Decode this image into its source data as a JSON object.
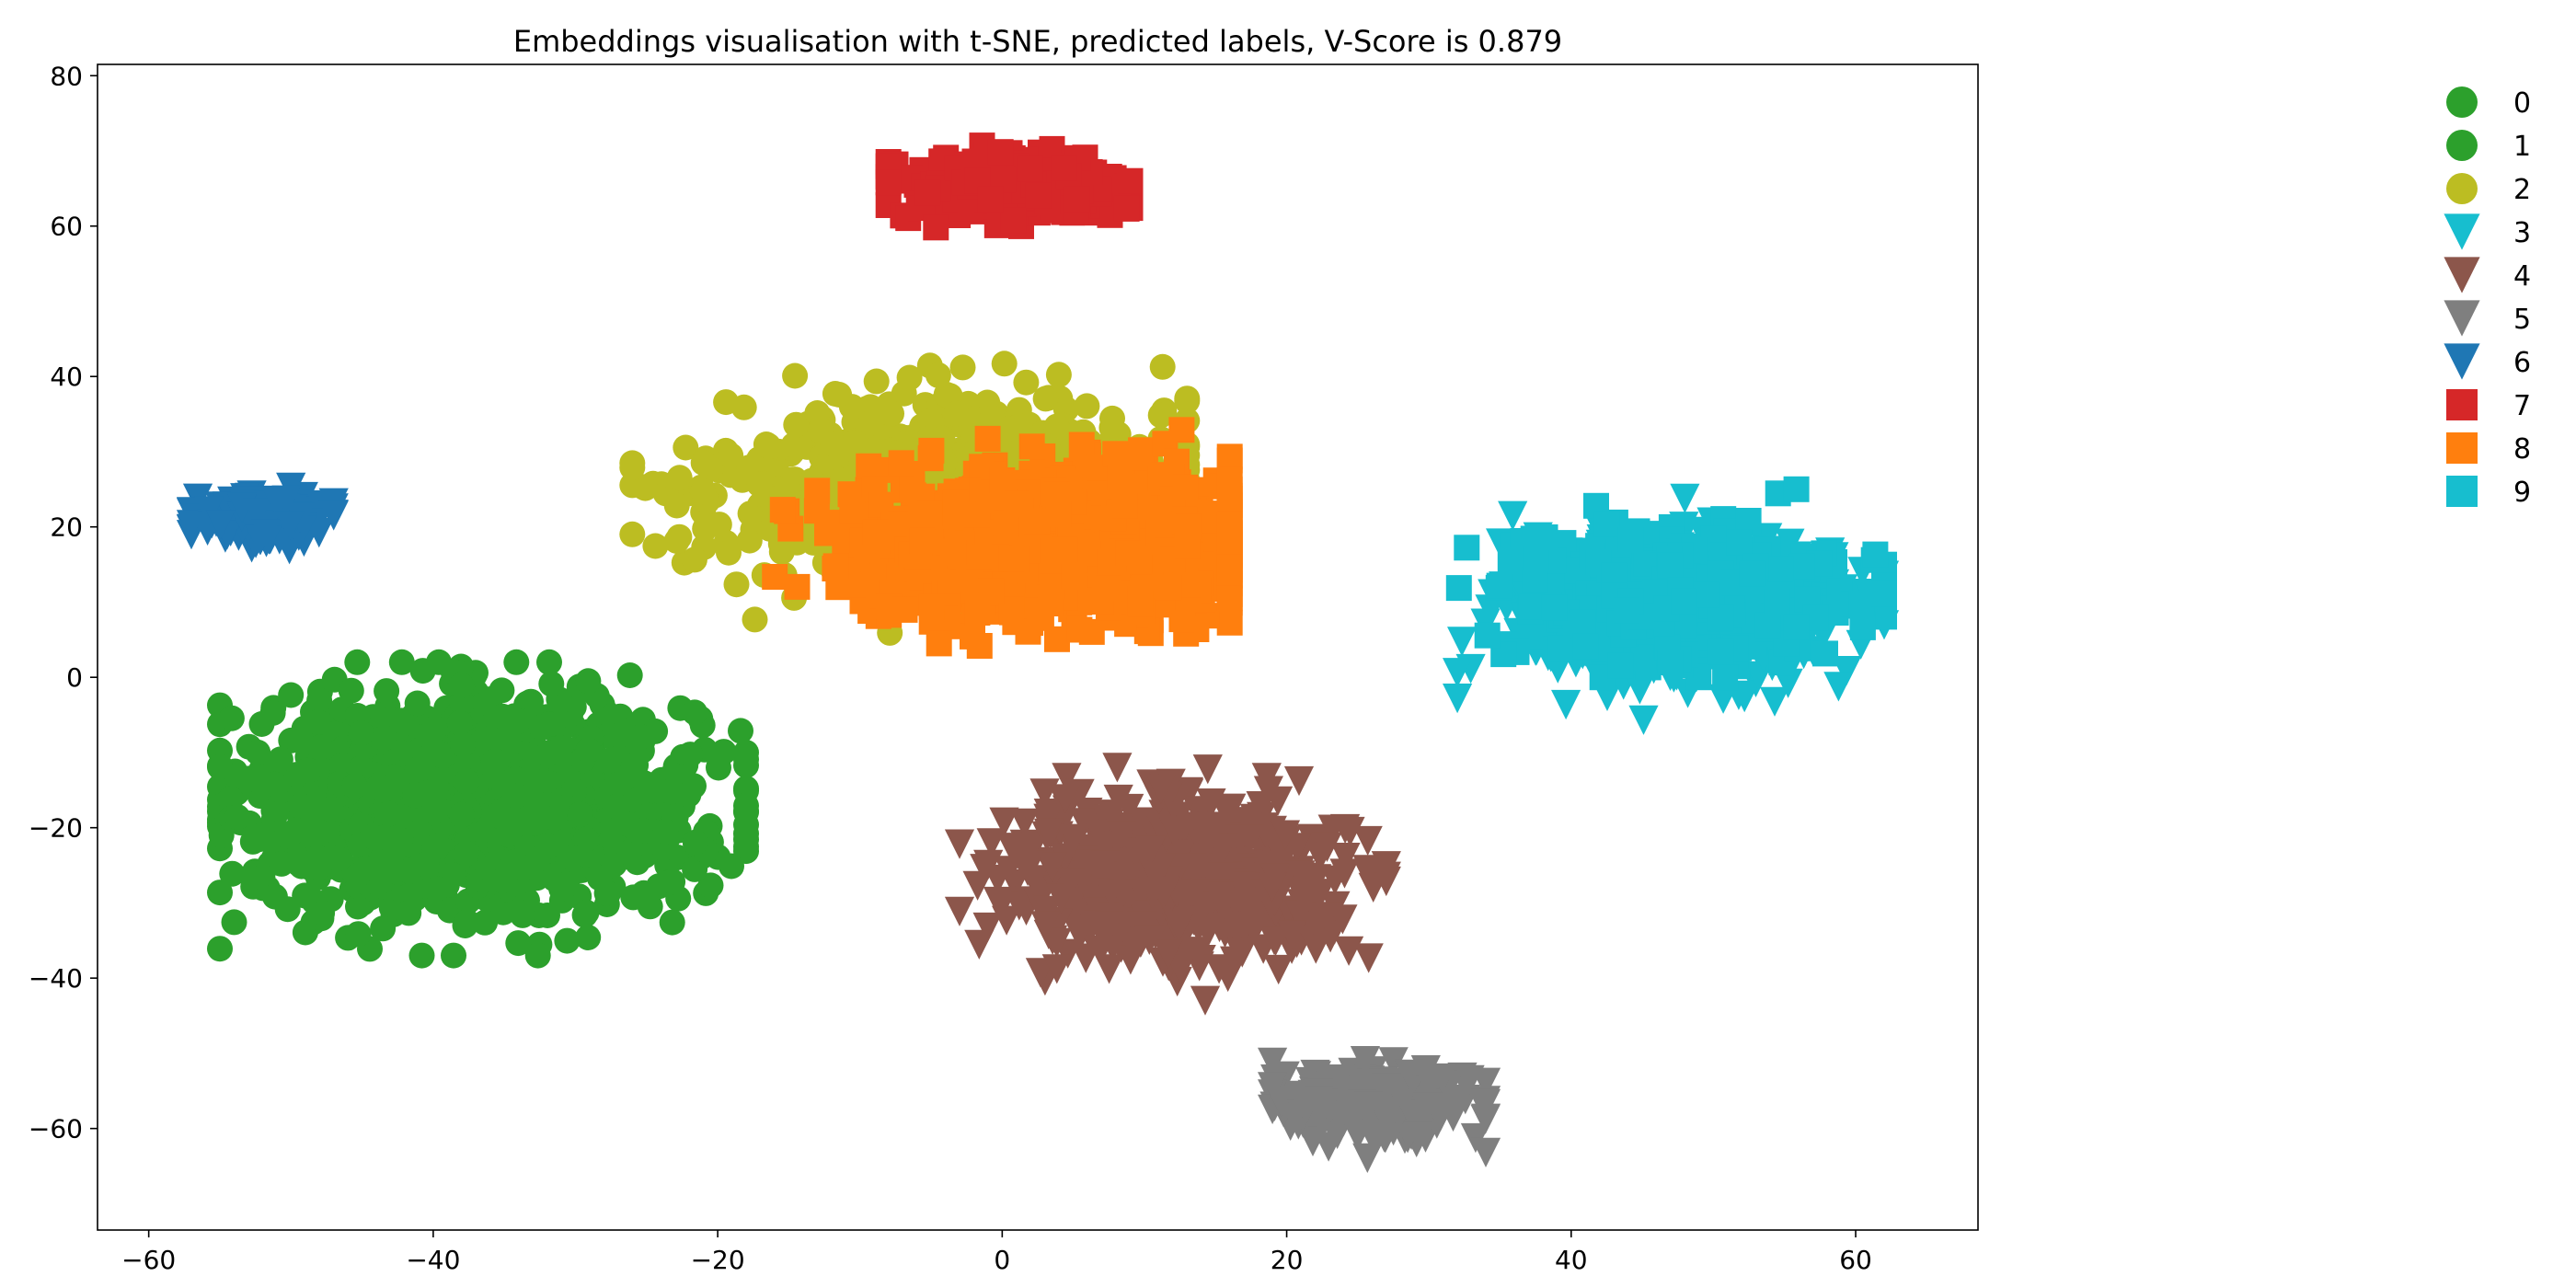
{
  "chart_data": {
    "type": "scatter",
    "title": "Embeddings visualisation with t-SNE, predicted labels, V-Score is 0.879",
    "xlabel": "",
    "ylabel": "",
    "xlim": [
      -63.6,
      68.6
    ],
    "ylim": [
      -73.5,
      81.5
    ],
    "x_ticks": [
      -60,
      -40,
      -20,
      0,
      20,
      40,
      60
    ],
    "y_ticks": [
      -60,
      -40,
      -20,
      0,
      20,
      40,
      60,
      80
    ],
    "grid": false,
    "legend_position": "outside-right",
    "series": [
      {
        "name": "0",
        "marker": "circle",
        "color": "#2ca02c",
        "n": 0,
        "center": [
          -37,
          -17
        ],
        "spread": [
          12.5,
          11
        ],
        "range_x": [
          -55,
          -18
        ],
        "range_y": [
          -37,
          2
        ]
      },
      {
        "name": "1",
        "marker": "circle",
        "color": "#2ca02c",
        "n": 1500,
        "center": [
          -37,
          -17
        ],
        "spread": [
          12.5,
          11
        ],
        "range_x": [
          -55,
          -18
        ],
        "range_y": [
          -37,
          2
        ]
      },
      {
        "name": "2",
        "marker": "circle",
        "color": "#bcbd22",
        "n": 900,
        "center": [
          -4,
          25
        ],
        "spread": [
          13,
          9.5
        ],
        "range_x": [
          -26,
          13
        ],
        "range_y": [
          3,
          45
        ]
      },
      {
        "name": "3",
        "marker": "triangle-down",
        "color": "#17becf",
        "n": 500,
        "center": [
          47,
          9
        ],
        "spread": [
          9.5,
          8
        ],
        "range_x": [
          32,
          62
        ],
        "range_y": [
          -6,
          25
        ]
      },
      {
        "name": "4",
        "marker": "triangle-down",
        "color": "#8c564b",
        "n": 700,
        "center": [
          12,
          -27
        ],
        "spread": [
          9.5,
          8
        ],
        "range_x": [
          -3,
          27
        ],
        "range_y": [
          -43,
          -12
        ]
      },
      {
        "name": "5",
        "marker": "triangle-down",
        "color": "#7f7f7f",
        "n": 250,
        "center": [
          26,
          -57
        ],
        "spread": [
          5.5,
          3.8
        ],
        "range_x": [
          19,
          34
        ],
        "range_y": [
          -66,
          -51
        ]
      },
      {
        "name": "6",
        "marker": "triangle-down",
        "color": "#1f77b4",
        "n": 150,
        "center": [
          -52,
          21
        ],
        "spread": [
          3.8,
          2.5
        ],
        "range_x": [
          -57,
          -47
        ],
        "range_y": [
          15,
          26
        ]
      },
      {
        "name": "7",
        "marker": "square",
        "color": "#d62728",
        "n": 350,
        "center": [
          1,
          65
        ],
        "spread": [
          6.5,
          3.6
        ],
        "range_x": [
          -8,
          9
        ],
        "range_y": [
          57,
          73
        ]
      },
      {
        "name": "8",
        "marker": "square",
        "color": "#ff7f0e",
        "n": 900,
        "center": [
          4,
          18
        ],
        "spread": [
          11,
          8
        ],
        "range_x": [
          -24,
          16
        ],
        "range_y": [
          2,
          41
        ]
      },
      {
        "name": "9",
        "marker": "square",
        "color": "#17becf",
        "n": 450,
        "center": [
          47,
          11
        ],
        "spread": [
          9.5,
          7
        ],
        "range_x": [
          32,
          62
        ],
        "range_y": [
          0,
          25
        ]
      }
    ]
  }
}
